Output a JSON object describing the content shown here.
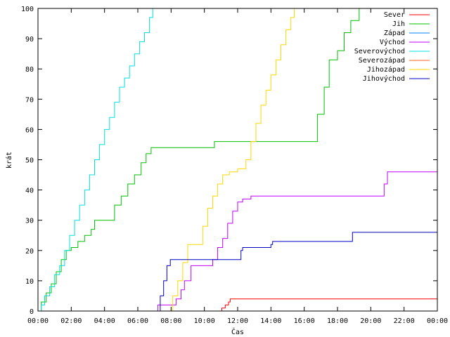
{
  "chart_data": {
    "type": "line",
    "xlabel": "Čas",
    "ylabel": "krát",
    "xlim": [
      0,
      24
    ],
    "ylim": [
      0,
      100
    ],
    "x_ticks": [
      0,
      2,
      4,
      6,
      8,
      10,
      12,
      14,
      16,
      18,
      20,
      22,
      24
    ],
    "x_tick_labels": [
      "00:00",
      "02:00",
      "04:00",
      "06:00",
      "08:00",
      "10:00",
      "12:00",
      "14:00",
      "16:00",
      "18:00",
      "20:00",
      "22:00",
      "00:00"
    ],
    "y_ticks": [
      0,
      10,
      20,
      30,
      40,
      50,
      60,
      70,
      80,
      90,
      100
    ],
    "y_tick_labels": [
      "0",
      "10",
      "20",
      "30",
      "40",
      "50",
      "60",
      "70",
      "80",
      "90",
      "100"
    ],
    "grid": false,
    "legend_position": "top-right",
    "series": [
      {
        "name": "Sever",
        "color": "#ff0000",
        "x": [
          0,
          11.0,
          11.05,
          11.25,
          11.45,
          11.55,
          24
        ],
        "y": [
          0,
          0,
          1,
          2,
          3,
          4,
          4
        ]
      },
      {
        "name": "Jih",
        "color": "#00c000",
        "x": [
          0,
          0.2,
          0.5,
          0.8,
          1.1,
          1.4,
          1.7,
          2.0,
          2.4,
          2.8,
          3.2,
          3.4,
          4.2,
          4.6,
          5.0,
          5.4,
          5.8,
          6.2,
          6.5,
          6.8,
          7.1,
          7.4,
          10.5,
          10.6,
          16.5,
          16.8,
          17.2,
          17.5,
          18.0,
          18.4,
          18.8,
          19.3,
          24
        ],
        "y": [
          0,
          3,
          6,
          9,
          13,
          17,
          20,
          21,
          23,
          25,
          27,
          30,
          30,
          35,
          38,
          42,
          45,
          49,
          52,
          54,
          54,
          54,
          54,
          56,
          56,
          65,
          74,
          83,
          86,
          92,
          96,
          100,
          100
        ]
      },
      {
        "name": "Západ",
        "color": "#0080ff",
        "x": [
          0,
          24
        ],
        "y": [
          0,
          0
        ]
      },
      {
        "name": "Východ",
        "color": "#c000ff",
        "x": [
          0,
          7.0,
          7.2,
          7.4,
          8.0,
          8.3,
          8.6,
          8.8,
          9.2,
          9.6,
          10.2,
          10.5,
          10.8,
          11.1,
          11.4,
          11.7,
          12.0,
          12.3,
          12.8,
          13.2,
          16.0,
          20.5,
          20.8,
          21.0,
          24
        ],
        "y": [
          0,
          0,
          2,
          2,
          2,
          4,
          7,
          10,
          15,
          15,
          15,
          17,
          21,
          24,
          29,
          33,
          36,
          37,
          38,
          38,
          38,
          38,
          42,
          46,
          46
        ]
      },
      {
        "name": "Severovýchod",
        "color": "#00e0e0",
        "x": [
          0,
          0.2,
          0.4,
          0.7,
          1.0,
          1.3,
          1.6,
          1.9,
          2.2,
          2.5,
          2.8,
          3.1,
          3.4,
          3.7,
          4.0,
          4.3,
          4.6,
          4.9,
          5.2,
          5.5,
          5.8,
          6.1,
          6.4,
          6.7,
          6.9
        ],
        "y": [
          0,
          2,
          5,
          8,
          12,
          15,
          20,
          25,
          30,
          35,
          40,
          45,
          50,
          55,
          60,
          64,
          69,
          74,
          77,
          81,
          85,
          89,
          92,
          97,
          100
        ]
      },
      {
        "name": "Severozápad",
        "color": "#ff6020",
        "x": [
          0,
          24
        ],
        "y": [
          0,
          0
        ]
      },
      {
        "name": "Jihozápad",
        "color": "#ffd700",
        "x": [
          0,
          7.8,
          8.1,
          8.4,
          8.7,
          9.0,
          9.3,
          9.6,
          9.9,
          10.2,
          10.5,
          10.8,
          11.1,
          11.5,
          12.0,
          12.5,
          12.8,
          13.1,
          13.4,
          13.7,
          14.0,
          14.3,
          14.6,
          14.9,
          15.2,
          15.4
        ],
        "y": [
          0,
          0,
          5,
          10,
          16,
          22,
          22,
          22,
          28,
          34,
          38,
          42,
          45,
          46,
          47,
          50,
          56,
          62,
          68,
          73,
          78,
          83,
          88,
          93,
          97,
          100
        ]
      },
      {
        "name": "Jihovýchod",
        "color": "#0000c0",
        "x": [
          0,
          7.1,
          7.35,
          7.55,
          7.75,
          7.95,
          8.2,
          11.0,
          11.2,
          12.2,
          12.3,
          14.0,
          14.1,
          18.7,
          18.9,
          24
        ],
        "y": [
          0,
          0,
          5,
          10,
          15,
          17,
          17,
          17,
          17,
          20,
          21,
          22,
          23,
          23,
          26,
          26
        ]
      }
    ]
  }
}
